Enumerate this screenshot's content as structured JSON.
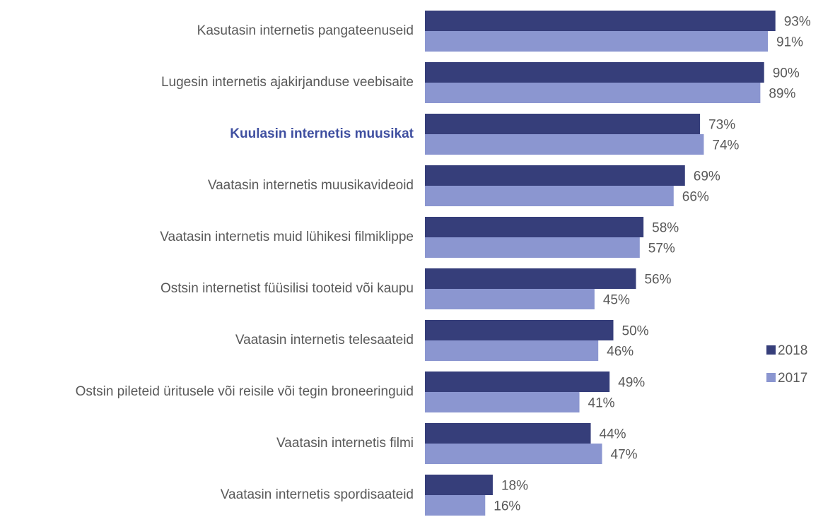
{
  "chart_data": {
    "type": "barh",
    "categories": [
      "Kasutasin internetis pangateenuseid",
      "Lugesin internetis ajakirjanduse veebisaite",
      "Kuulasin internetis muusikat",
      "Vaatasin internetis muusikavideoid",
      "Vaatasin internetis muid lühikesi filmiklippe",
      "Ostsin internetist füüsilisi tooteid või kaupu",
      "Vaatasin internetis telesaateid",
      "Ostsin pileteid üritusele või reisile või tegin broneeringuid",
      "Vaatasin internetis filmi",
      "Vaatasin internetis spordisaateid"
    ],
    "series": [
      {
        "name": "2018",
        "color": "#363e7a",
        "values": [
          93,
          90,
          73,
          69,
          58,
          56,
          50,
          49,
          44,
          18
        ],
        "value_labels": [
          "93%",
          "90%",
          "73%",
          "69%",
          "58%",
          "56%",
          "50%",
          "49%",
          "44%",
          "18%"
        ]
      },
      {
        "name": "2017",
        "color": "#8b96d0",
        "values": [
          91,
          89,
          74,
          66,
          57,
          45,
          46,
          41,
          47,
          16
        ],
        "value_labels": [
          "91%",
          "89%",
          "74%",
          "66%",
          "57%",
          "45%",
          "46%",
          "41%",
          "47%",
          "16%"
        ]
      }
    ],
    "xlim": [
      0,
      100
    ],
    "highlight_category": 2,
    "highlight_color": "#3f4fa0",
    "legend": "right"
  }
}
